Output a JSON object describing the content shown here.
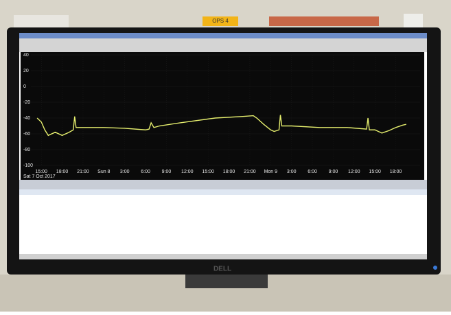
{
  "screen": {
    "label": "OPS 4",
    "brand": "DELL"
  },
  "chart_data": {
    "type": "line",
    "x_date": "Sat 7 Oct 2017",
    "xlim": [
      -1.5,
      54.5
    ],
    "xticks": [
      {
        "value": 0,
        "label": "15:00"
      },
      {
        "value": 3,
        "label": "18:00"
      },
      {
        "value": 6,
        "label": "21:00"
      },
      {
        "value": 9,
        "label": "Sun 8"
      },
      {
        "value": 12,
        "label": "3:00"
      },
      {
        "value": 15,
        "label": "6:00"
      },
      {
        "value": 18,
        "label": "9:00"
      },
      {
        "value": 21,
        "label": "12:00"
      },
      {
        "value": 24,
        "label": "15:00"
      },
      {
        "value": 27,
        "label": "18:00"
      },
      {
        "value": 30,
        "label": "21:00"
      },
      {
        "value": 33,
        "label": "Mon 9"
      },
      {
        "value": 36,
        "label": "3:00"
      },
      {
        "value": 39,
        "label": "6:00"
      },
      {
        "value": 42,
        "label": "9:00"
      },
      {
        "value": 45,
        "label": "12:00"
      },
      {
        "value": 48,
        "label": "15:00"
      },
      {
        "value": 51,
        "label": "18:00"
      }
    ],
    "ylim": [
      -100,
      40
    ],
    "yticks": [
      40,
      20,
      0,
      -20,
      -40,
      -60,
      -80,
      -100
    ],
    "x": [
      -0.6,
      0,
      0.5,
      1,
      2,
      3,
      4,
      4.6,
      4.8,
      5,
      6,
      9,
      12,
      15,
      15.5,
      15.8,
      16.2,
      17,
      20,
      25,
      29,
      30.5,
      31,
      32,
      33,
      33.5,
      34.2,
      34.4,
      34.6,
      36,
      40,
      44,
      46.8,
      47,
      47.2,
      48,
      49,
      50,
      51,
      52,
      52.5
    ],
    "series": [
      {
        "color": "#e6ef6e",
        "values": [
          -40,
          -45,
          -55,
          -62,
          -58,
          -62,
          -58,
          -55,
          -38,
          -52,
          -52,
          -52,
          -53,
          -55,
          -54,
          -46,
          -52,
          -50,
          -46,
          -40,
          -38,
          -37,
          -40,
          -48,
          -55,
          -57,
          -55,
          -36,
          -50,
          -50,
          -52,
          -52,
          -54,
          -40,
          -55,
          -55,
          -59,
          -56,
          -52,
          -49,
          -48
        ]
      }
    ]
  }
}
